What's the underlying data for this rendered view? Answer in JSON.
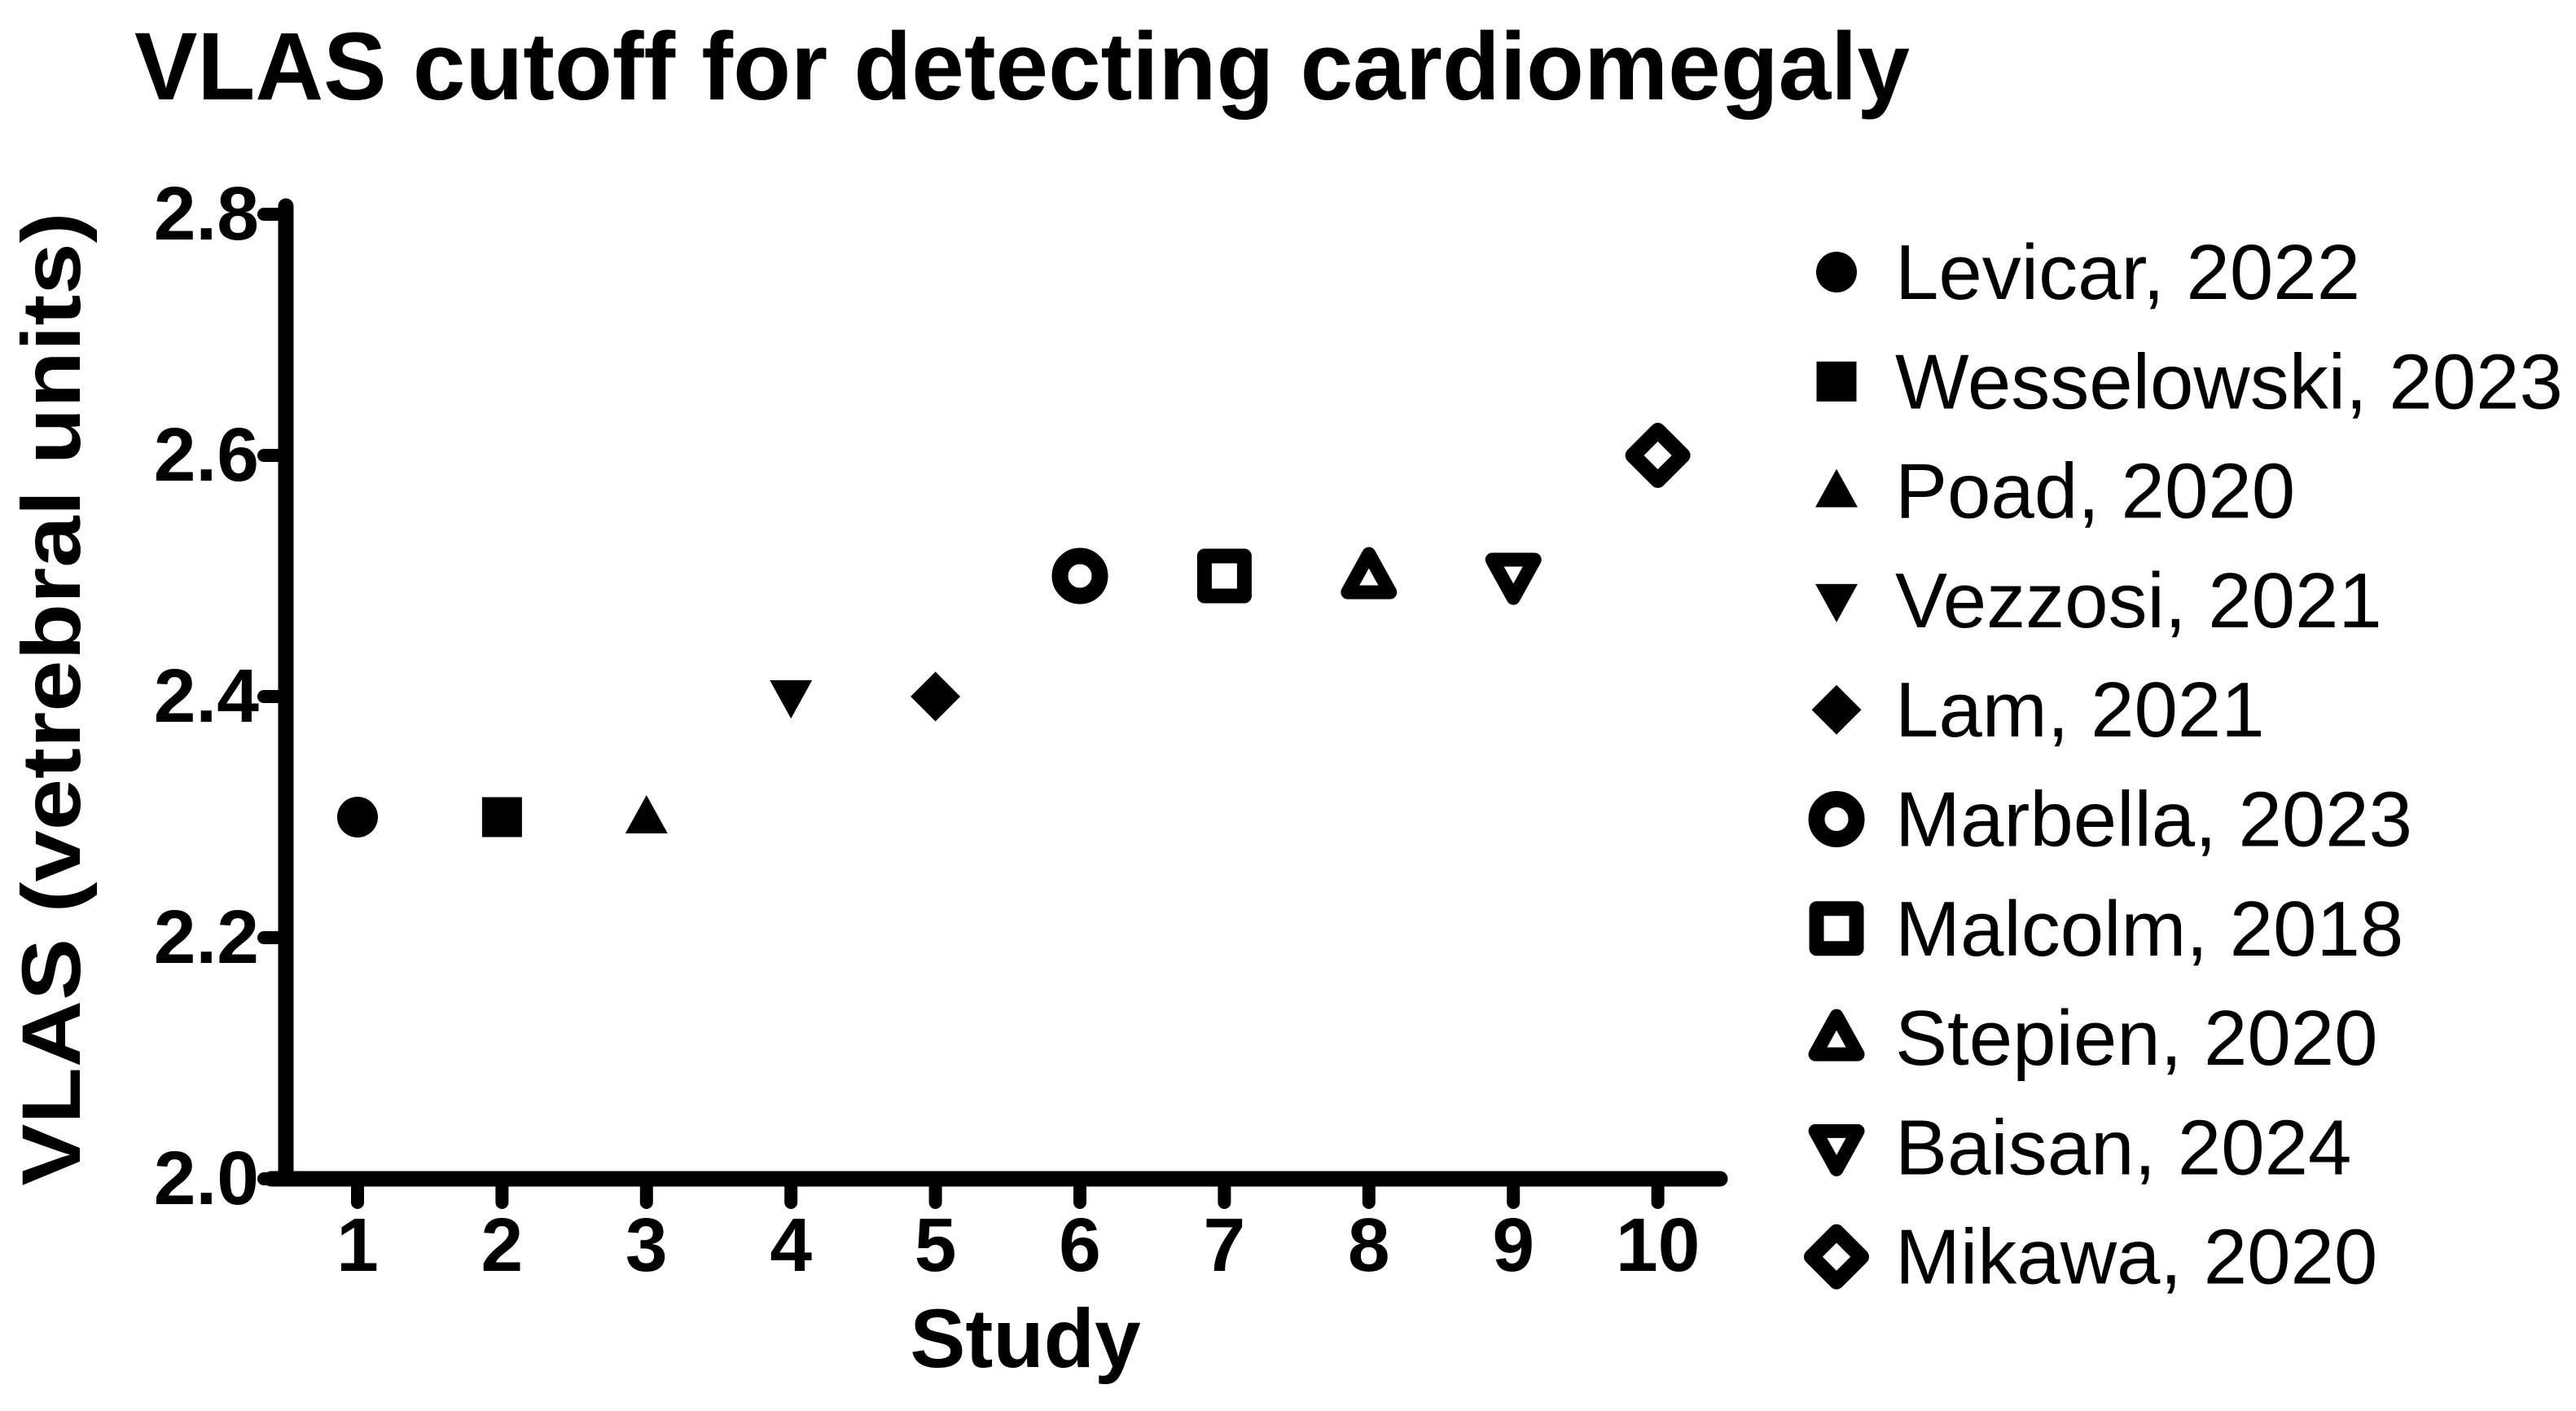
{
  "chart_data": {
    "type": "scatter",
    "title": "VLAS cutoff for detecting cardiomegaly",
    "xlabel": "Study",
    "ylabel": "VLAS (vetrebral units)",
    "x_ticks": [
      "1",
      "2",
      "3",
      "4",
      "5",
      "6",
      "7",
      "8",
      "9",
      "10"
    ],
    "y_ticks": [
      "2.0",
      "2.2",
      "2.4",
      "2.6",
      "2.8"
    ],
    "ylim": [
      2.0,
      2.8
    ],
    "grid": false,
    "legend_position": "right",
    "series": [
      {
        "name": "Levicar, 2022",
        "marker": "circle",
        "fill": "filled",
        "x": 1,
        "y": 2.3
      },
      {
        "name": "Wesselowski, 2023",
        "marker": "square",
        "fill": "filled",
        "x": 2,
        "y": 2.3
      },
      {
        "name": "Poad, 2020",
        "marker": "triangle-up",
        "fill": "filled",
        "x": 3,
        "y": 2.3
      },
      {
        "name": "Vezzosi, 2021",
        "marker": "triangle-down",
        "fill": "filled",
        "x": 4,
        "y": 2.4
      },
      {
        "name": "Lam, 2021",
        "marker": "diamond",
        "fill": "filled",
        "x": 5,
        "y": 2.4
      },
      {
        "name": "Marbella, 2023",
        "marker": "circle",
        "fill": "open",
        "x": 6,
        "y": 2.5
      },
      {
        "name": "Malcolm, 2018",
        "marker": "square",
        "fill": "open",
        "x": 7,
        "y": 2.5
      },
      {
        "name": "Stepien, 2020",
        "marker": "triangle-up",
        "fill": "open",
        "x": 8,
        "y": 2.5
      },
      {
        "name": "Baisan, 2024",
        "marker": "triangle-down",
        "fill": "open",
        "x": 9,
        "y": 2.5
      },
      {
        "name": "Mikawa, 2020",
        "marker": "diamond",
        "fill": "open",
        "x": 10,
        "y": 2.6
      }
    ],
    "colors": {
      "foreground": "#000000",
      "background": "#ffffff"
    }
  }
}
